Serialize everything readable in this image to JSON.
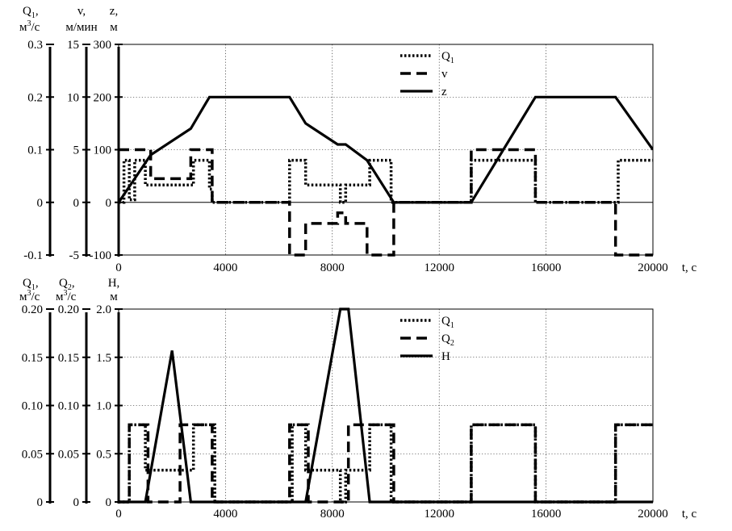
{
  "chart_data": [
    {
      "type": "line",
      "x_label": "t, c",
      "x_range": [
        0,
        20000
      ],
      "x_ticks": [
        "0",
        "4000",
        "8000",
        "12000",
        "16000",
        "20000"
      ],
      "grid": true,
      "legend_position": "top-center",
      "axes": [
        {
          "id": "q1",
          "label_lines": [
            "Q",
            "1",
            ",",
            "м",
            "3",
            "/c"
          ],
          "range": [
            -0.1,
            0.3
          ],
          "ticks": [
            "0.3",
            "0.2",
            "0.1",
            "0",
            "-0.1"
          ]
        },
        {
          "id": "v",
          "label_lines": [
            "v,",
            "м/мин"
          ],
          "range": [
            -5,
            15
          ],
          "ticks": [
            "15",
            "10",
            "5",
            "0",
            "-5"
          ]
        },
        {
          "id": "z",
          "label_lines": [
            "z,",
            "м"
          ],
          "range": [
            -100,
            300
          ],
          "ticks": [
            "300",
            "200",
            "100",
            "0",
            "-100"
          ]
        }
      ],
      "series": [
        {
          "name": "Q",
          "sub": "1",
          "style": "dotted",
          "axis": "z",
          "x": [
            0,
            200,
            200,
            400,
            400,
            600,
            600,
            1000,
            1000,
            2800,
            2800,
            3400,
            3400,
            3500,
            3500,
            6400,
            6400,
            7000,
            7000,
            8300,
            8300,
            8500,
            8500,
            9400,
            9400,
            10200,
            10200,
            13200,
            13200,
            15600,
            15600,
            18700,
            18700,
            20000
          ],
          "y": [
            0,
            0,
            80,
            80,
            5,
            5,
            80,
            80,
            33,
            33,
            80,
            80,
            25,
            25,
            0,
            0,
            80,
            80,
            33,
            33,
            0,
            0,
            33,
            33,
            80,
            80,
            0,
            0,
            80,
            80,
            0,
            0,
            80,
            80
          ]
        },
        {
          "name": "v",
          "style": "dashed",
          "axis": "z",
          "x": [
            0,
            1200,
            1200,
            2700,
            2700,
            3500,
            3500,
            6400,
            6400,
            7000,
            7000,
            8200,
            8200,
            8500,
            8500,
            9300,
            9300,
            10300,
            10300,
            13200,
            13200,
            15600,
            15600,
            18600,
            18600,
            20000
          ],
          "y": [
            100,
            100,
            45,
            45,
            100,
            100,
            0,
            0,
            -100,
            -100,
            -40,
            -40,
            -20,
            -20,
            -40,
            -40,
            -100,
            -100,
            0,
            0,
            100,
            100,
            0,
            0,
            -100,
            -100
          ]
        },
        {
          "name": "z",
          "style": "solid",
          "axis": "z",
          "x": [
            0,
            1200,
            2700,
            3400,
            6400,
            7000,
            8200,
            8500,
            9300,
            10300,
            13200,
            15600,
            18600,
            20000
          ],
          "y": [
            0,
            90,
            140,
            200,
            200,
            150,
            110,
            110,
            80,
            0,
            0,
            200,
            200,
            100
          ]
        }
      ]
    },
    {
      "type": "line",
      "x_label": "t, c",
      "x_range": [
        0,
        20000
      ],
      "x_ticks": [
        "0",
        "4000",
        "8000",
        "12000",
        "16000",
        "20000"
      ],
      "grid": true,
      "legend_position": "top-center",
      "axes": [
        {
          "id": "q1",
          "label_lines": [
            "Q",
            "1",
            ",",
            "м",
            "3",
            "/c"
          ],
          "range": [
            0,
            0.2
          ],
          "ticks": [
            "0.20",
            "0.15",
            "0.10",
            "0.05",
            "0"
          ]
        },
        {
          "id": "q2",
          "label_lines": [
            "Q",
            "2",
            ",",
            "м",
            "3",
            "/c"
          ],
          "range": [
            0,
            0.2
          ],
          "ticks": [
            "0.20",
            "0.15",
            "0.10",
            "0.05",
            "0"
          ]
        },
        {
          "id": "h",
          "label_lines": [
            "H,",
            "м"
          ],
          "range": [
            0,
            2
          ],
          "ticks": [
            "2.0",
            "1.5",
            "1.0",
            "0.5",
            "0"
          ]
        }
      ],
      "series": [
        {
          "name": "Q",
          "sub": "1",
          "style": "dotted",
          "axis": "h",
          "x": [
            0,
            400,
            400,
            1000,
            1000,
            2800,
            2800,
            3600,
            3600,
            6500,
            6500,
            7000,
            7000,
            8300,
            8300,
            8500,
            8500,
            9400,
            9400,
            10200,
            10200,
            13200,
            13200,
            15600,
            15600,
            18600,
            18600,
            20000
          ],
          "y": [
            0,
            0,
            0.8,
            0.8,
            0.33,
            0.33,
            0.8,
            0.8,
            0,
            0,
            0.8,
            0.8,
            0.33,
            0.33,
            0,
            0,
            0.33,
            0.33,
            0.8,
            0.8,
            0,
            0,
            0.8,
            0.8,
            0,
            0,
            0.8,
            0.8
          ]
        },
        {
          "name": "Q",
          "sub": "2",
          "style": "dashed",
          "axis": "h",
          "x": [
            0,
            400,
            400,
            1100,
            1100,
            2300,
            2300,
            3500,
            3500,
            6400,
            6400,
            7100,
            7100,
            8600,
            8600,
            10300,
            10300,
            13200,
            13200,
            15600,
            15600,
            18600,
            18600,
            20000
          ],
          "y": [
            0,
            0,
            0.8,
            0.8,
            0,
            0,
            0.8,
            0.8,
            0,
            0,
            0.8,
            0.8,
            0,
            0,
            0.8,
            0.8,
            0,
            0,
            0.8,
            0.8,
            0,
            0,
            0.8,
            0.8
          ]
        },
        {
          "name": "H",
          "style": "solid",
          "axis": "h",
          "x": [
            0,
            1000,
            2000,
            2700,
            7000,
            8300,
            8600,
            9400,
            20000
          ],
          "y": [
            0,
            0,
            1.57,
            0,
            0,
            2.0,
            2.0,
            0,
            0
          ]
        }
      ]
    }
  ]
}
